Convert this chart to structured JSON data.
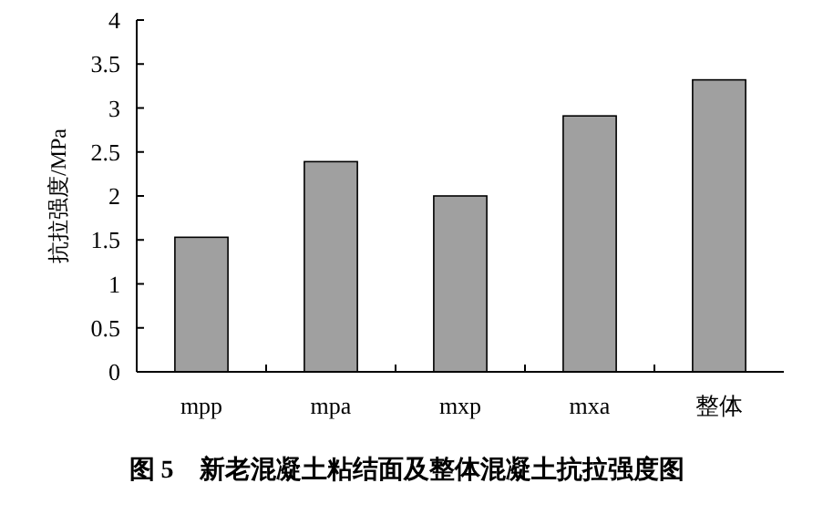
{
  "chart_data": {
    "type": "bar",
    "title": "图 5　新老混凝土粘结面及整体混凝土抗拉强度图",
    "ylabel": "抗拉强度/MPa",
    "categories": [
      "mpp",
      "mpa",
      "mxp",
      "mxa",
      "整体"
    ],
    "values": [
      1.53,
      2.39,
      2.0,
      2.91,
      3.32
    ],
    "color": "#a0a0a0",
    "ylim": [
      0,
      4
    ],
    "yticks": [
      0,
      0.5,
      1,
      1.5,
      2,
      2.5,
      3,
      3.5,
      4
    ]
  }
}
